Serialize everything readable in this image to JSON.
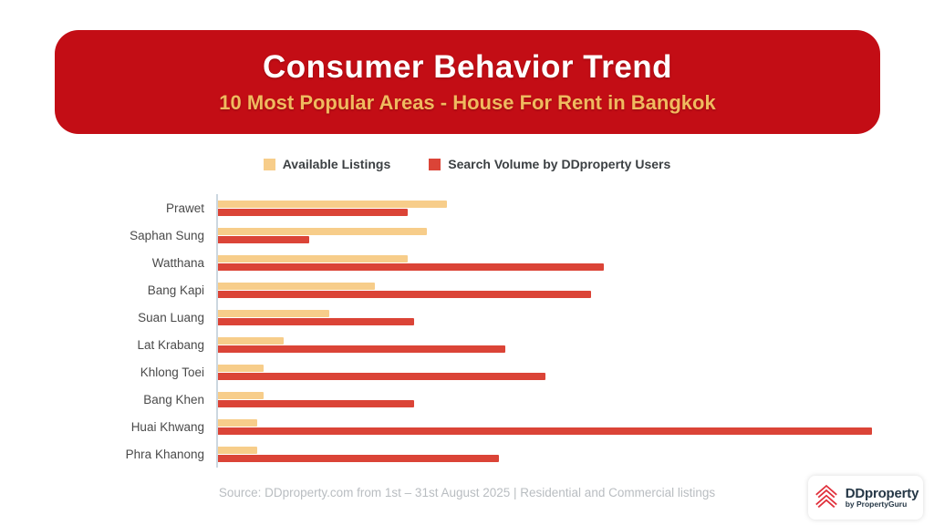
{
  "header": {
    "title": "Consumer Behavior Trend",
    "subtitle": "10 Most Popular Areas - House For Rent in Bangkok"
  },
  "legend": {
    "available_label": "Available Listings",
    "search_label": "Search Volume by DDproperty Users"
  },
  "colors": {
    "banner_red": "#c30d15",
    "subtitle_gold": "#f0ba5f",
    "bar_yellow": "#f7cd8a",
    "bar_red": "#db4437",
    "axis_line": "#ccd7e0",
    "label_text": "#4a4a4a",
    "footer_text": "#b9bdc1",
    "logo_navy": "#253746",
    "logo_red": "#e0303b"
  },
  "chart_data": {
    "type": "bar",
    "orientation": "horizontal",
    "title": "10 Most Popular Areas - House For Rent in Bangkok",
    "categories": [
      "Prawet",
      "Saphan Sung",
      "Watthana",
      "Bang Kapi",
      "Suan Luang",
      "Lat Krabang",
      "Khlong Toei",
      "Bang Khen",
      "Huai Khwang",
      "Phra Khanong"
    ],
    "series": [
      {
        "name": "Available Listings",
        "color": "#f7cd8a",
        "values": [
          35,
          32,
          29,
          24,
          17,
          10,
          7,
          7,
          6,
          6
        ]
      },
      {
        "name": "Search Volume by DDproperty Users",
        "color": "#db4437",
        "values": [
          29,
          14,
          59,
          57,
          30,
          44,
          50,
          30,
          100,
          43
        ]
      }
    ],
    "xlim": [
      0,
      100
    ],
    "grid": false,
    "legend_position": "top"
  },
  "footer": {
    "source": "Source: DDproperty.com from 1st – 31st August 2025 | Residential and Commercial listings"
  },
  "logo": {
    "brand": "DDproperty",
    "sub": "by PropertyGuru"
  }
}
